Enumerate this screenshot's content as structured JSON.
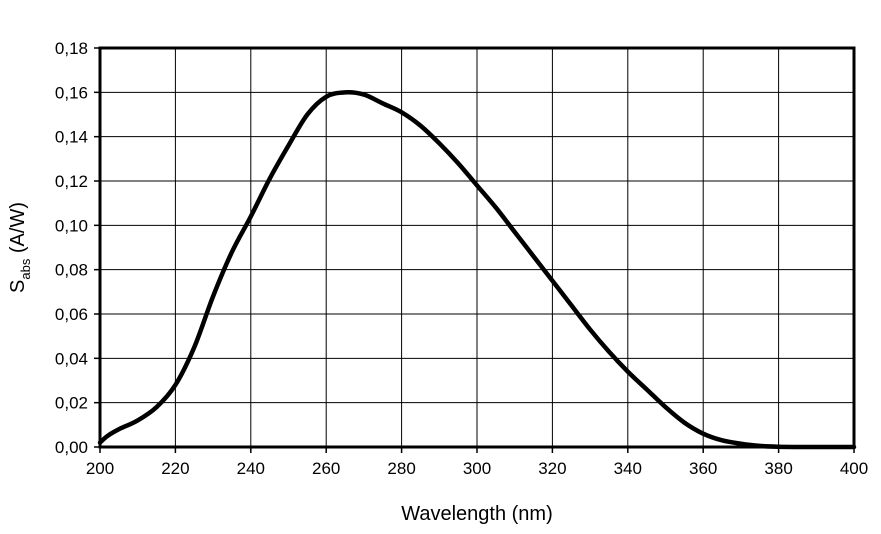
{
  "chart_data": {
    "type": "line",
    "title": "",
    "xlabel": "Wavelength (nm)",
    "ylabel": {
      "main": "S",
      "subscript": "abs",
      "rest": " (A/W)"
    },
    "xlim": [
      200,
      400
    ],
    "ylim": [
      0,
      0.18
    ],
    "x_ticks": [
      200,
      220,
      240,
      260,
      280,
      300,
      320,
      340,
      360,
      380,
      400
    ],
    "y_ticks": [
      0,
      0.02,
      0.04,
      0.06,
      0.08,
      0.1,
      0.12,
      0.14,
      0.16,
      0.18
    ],
    "y_tick_labels": [
      "0,00",
      "0,02",
      "0,04",
      "0,06",
      "0,08",
      "0,10",
      "0,12",
      "0,14",
      "0,16",
      "0,18"
    ],
    "x_tick_labels": [
      "200",
      "220",
      "240",
      "260",
      "280",
      "300",
      "320",
      "340",
      "360",
      "380",
      "400"
    ],
    "grid": true,
    "legend": false,
    "line_color": "#000000",
    "series": [
      {
        "x": [
          200,
          202,
          205,
          210,
          215,
          220,
          225,
          230,
          235,
          240,
          245,
          250,
          255,
          260,
          265,
          270,
          275,
          280,
          285,
          290,
          295,
          300,
          305,
          310,
          315,
          320,
          325,
          330,
          335,
          340,
          345,
          350,
          355,
          360,
          365,
          370,
          375,
          380,
          385,
          390,
          395,
          400
        ],
        "y": [
          0.002,
          0.005,
          0.008,
          0.012,
          0.018,
          0.028,
          0.045,
          0.068,
          0.088,
          0.104,
          0.121,
          0.136,
          0.15,
          0.158,
          0.16,
          0.159,
          0.155,
          0.151,
          0.145,
          0.137,
          0.128,
          0.118,
          0.108,
          0.097,
          0.086,
          0.075,
          0.064,
          0.053,
          0.043,
          0.034,
          0.026,
          0.018,
          0.011,
          0.006,
          0.003,
          0.0015,
          0.0005,
          0.0001,
          0.0,
          0.0,
          0.0,
          0.0
        ]
      }
    ]
  }
}
